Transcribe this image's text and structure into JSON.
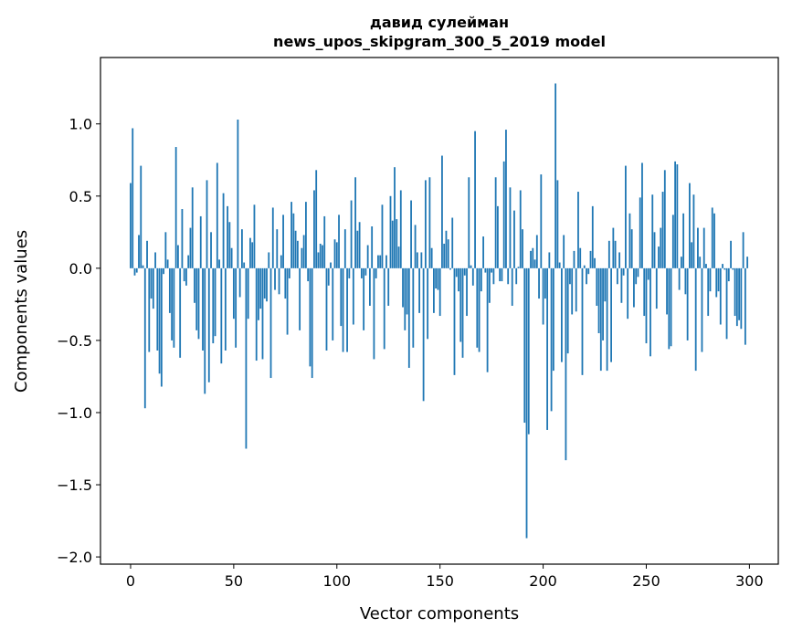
{
  "chart_data": {
    "type": "bar",
    "title": "давид сулейман",
    "subtitle": "news_upos_skipgram_300_5_2019 model",
    "xlabel": "Vector components",
    "ylabel": "Components values",
    "xlim": [
      -14.6,
      314
    ],
    "ylim": [
      -2.05,
      1.46
    ],
    "xticks": [
      0,
      50,
      100,
      150,
      200,
      250,
      300
    ],
    "xtick_labels": [
      "0",
      "50",
      "100",
      "150",
      "200",
      "250",
      "300"
    ],
    "yticks": [
      1.0,
      0.5,
      0.0,
      -0.5,
      -1.0,
      -1.5,
      -2.0
    ],
    "ytick_labels": [
      "1.0",
      "0.5",
      "0.0",
      "−0.5",
      "−1.0",
      "−1.5",
      "−2.0"
    ],
    "grid": false,
    "bar_color": "#1f77b4",
    "values": [
      0.59,
      0.97,
      -0.05,
      -0.03,
      0.23,
      0.71,
      0.02,
      -0.97,
      0.19,
      -0.58,
      -0.21,
      -0.28,
      0.11,
      -0.57,
      -0.73,
      -0.82,
      -0.04,
      0.25,
      0.06,
      -0.31,
      -0.5,
      -0.55,
      0.84,
      0.16,
      -0.62,
      0.41,
      -0.09,
      -0.12,
      0.09,
      0.28,
      0.56,
      -0.24,
      -0.43,
      -0.49,
      0.36,
      -0.57,
      -0.87,
      0.61,
      -0.79,
      0.25,
      -0.52,
      -0.47,
      0.73,
      0.06,
      -0.66,
      0.52,
      -0.57,
      0.43,
      0.32,
      0.14,
      -0.35,
      -0.55,
      1.03,
      -0.2,
      0.27,
      0.04,
      -1.25,
      -0.35,
      0.21,
      0.18,
      0.44,
      -0.64,
      -0.36,
      -0.28,
      -0.63,
      -0.21,
      -0.23,
      0.11,
      -0.76,
      0.42,
      -0.15,
      0.27,
      -0.18,
      0.09,
      0.37,
      -0.21,
      -0.46,
      -0.07,
      0.46,
      0.38,
      0.26,
      0.19,
      -0.43,
      0.14,
      0.23,
      0.46,
      -0.09,
      -0.68,
      -0.76,
      0.54,
      0.68,
      0.11,
      0.17,
      0.16,
      0.36,
      -0.57,
      -0.12,
      0.04,
      -0.5,
      0.2,
      0.18,
      0.37,
      -0.4,
      -0.58,
      0.27,
      -0.58,
      -0.07,
      0.47,
      -0.39,
      0.63,
      0.26,
      0.32,
      -0.07,
      -0.43,
      -0.05,
      0.16,
      -0.26,
      0.29,
      -0.63,
      -0.07,
      0.09,
      0.09,
      0.44,
      -0.56,
      0.09,
      -0.26,
      0.5,
      0.33,
      0.7,
      0.34,
      0.15,
      0.54,
      -0.27,
      -0.43,
      -0.32,
      -0.69,
      0.47,
      -0.55,
      0.3,
      0.11,
      -0.31,
      0.11,
      -0.92,
      0.61,
      -0.49,
      0.63,
      0.14,
      -0.31,
      -0.14,
      -0.15,
      -0.33,
      0.78,
      0.17,
      0.26,
      0.2,
      -0.01,
      0.35,
      -0.74,
      -0.06,
      -0.16,
      -0.51,
      -0.62,
      -0.05,
      -0.33,
      0.63,
      0.02,
      -0.12,
      0.95,
      -0.55,
      -0.58,
      -0.16,
      0.22,
      -0.03,
      -0.72,
      -0.24,
      -0.03,
      -0.11,
      0.63,
      0.43,
      -0.09,
      -0.09,
      0.74,
      0.96,
      -0.11,
      0.56,
      -0.26,
      0.4,
      -0.11,
      0.01,
      0.54,
      0.27,
      -1.07,
      -1.87,
      -1.15,
      0.12,
      0.14,
      0.06,
      0.23,
      -0.21,
      0.65,
      -0.39,
      -0.21,
      -1.12,
      0.11,
      -0.99,
      -0.71,
      1.28,
      0.61,
      0.04,
      -0.65,
      0.23,
      -1.33,
      -0.59,
      -0.11,
      -0.32,
      0.12,
      -0.3,
      0.53,
      0.14,
      -0.74,
      0.02,
      -0.11,
      -0.04,
      0.12,
      0.43,
      0.07,
      -0.26,
      -0.45,
      -0.71,
      -0.5,
      -0.23,
      -0.71,
      0.19,
      -0.65,
      0.28,
      0.19,
      -0.11,
      0.11,
      -0.24,
      -0.05,
      0.71,
      -0.35,
      0.38,
      0.27,
      -0.27,
      -0.11,
      -0.06,
      0.49,
      0.73,
      -0.33,
      -0.52,
      -0.08,
      -0.61,
      0.51,
      0.25,
      -0.28,
      0.15,
      0.28,
      0.53,
      0.68,
      -0.32,
      -0.56,
      -0.54,
      0.37,
      0.74,
      0.72,
      -0.15,
      0.08,
      0.38,
      -0.18,
      -0.5,
      0.59,
      0.18,
      0.51,
      -0.71,
      0.28,
      0.08,
      -0.58,
      0.28,
      0.03,
      -0.33,
      -0.16,
      0.42,
      0.38,
      -0.2,
      -0.16,
      -0.39,
      0.03,
      -0.01,
      -0.49,
      -0.09,
      0.19,
      -0.01,
      -0.33,
      -0.4,
      -0.36,
      -0.42,
      0.25,
      -0.53,
      0.08
    ]
  }
}
